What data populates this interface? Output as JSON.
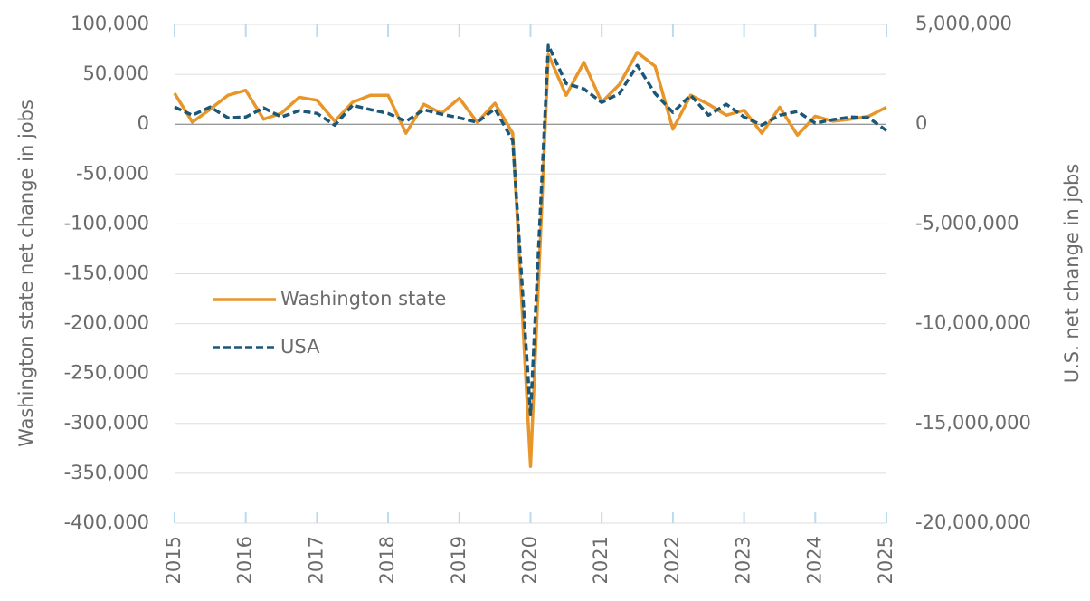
{
  "chart_data": {
    "type": "line",
    "y_label": "Washington state net change in jobs",
    "y2_label": "U.S. net change in jobs",
    "x": [
      2015,
      2015.25,
      2015.5,
      2015.75,
      2016,
      2016.25,
      2016.5,
      2016.75,
      2017,
      2017.25,
      2017.5,
      2017.75,
      2018,
      2018.25,
      2018.5,
      2018.75,
      2019,
      2019.25,
      2019.5,
      2019.75,
      2020,
      2020.25,
      2020.5,
      2020.75,
      2021,
      2021.25,
      2021.5,
      2021.75,
      2022,
      2022.25,
      2022.5,
      2022.75,
      2023,
      2023.25,
      2023.5,
      2023.75,
      2024,
      2024.25,
      2024.5,
      2024.75,
      2025
    ],
    "xlim": [
      2015,
      2025
    ],
    "xticks": [
      2015,
      2016,
      2017,
      2018,
      2019,
      2020,
      2021,
      2022,
      2023,
      2024,
      2025
    ],
    "ylim": [
      -400000,
      100000
    ],
    "yticks": [
      {
        "value": -400000,
        "label": "-400,000"
      },
      {
        "value": -350000,
        "label": "-350,000"
      },
      {
        "value": -300000,
        "label": "-300,000"
      },
      {
        "value": -250000,
        "label": "-250,000"
      },
      {
        "value": -200000,
        "label": "-200,000"
      },
      {
        "value": -150000,
        "label": "-150,000"
      },
      {
        "value": -100000,
        "label": "-100,000"
      },
      {
        "value": -50000,
        "label": "-50,000"
      },
      0,
      {
        "value": 50000,
        "label": "50,000"
      },
      {
        "value": 100000,
        "label": "100,000"
      }
    ],
    "y2lim": [
      -20000000,
      5000000
    ],
    "y2ticks": [
      {
        "value": -20000000,
        "label": "-20,000,000"
      },
      {
        "value": -15000000,
        "label": "-15,000,000"
      },
      {
        "value": -10000000,
        "label": "-10,000,000"
      },
      {
        "value": -5000000,
        "label": "-5,000,000"
      },
      0,
      {
        "value": 5000000,
        "label": "5,000,000"
      }
    ],
    "grid": true,
    "series": [
      {
        "name": "Washington state",
        "color": "#e8962a",
        "dash": false,
        "values": [
          31000,
          2000,
          15000,
          29000,
          34000,
          5000,
          11000,
          27000,
          24000,
          3000,
          22000,
          29000,
          29000,
          -9000,
          20000,
          11000,
          26000,
          2000,
          21000,
          -9000,
          -343000,
          70000,
          29000,
          62000,
          22000,
          40000,
          72000,
          58000,
          -5000,
          29000,
          20000,
          9000,
          14000,
          -9000,
          17000,
          -11000,
          8000,
          3000,
          5000,
          8000,
          17000
        ]
      },
      {
        "name": "USA",
        "color": "#1b5777",
        "dash": true,
        "axis": "y2",
        "values": [
          860000,
          450000,
          860000,
          320000,
          360000,
          820000,
          360000,
          680000,
          540000,
          -50000,
          950000,
          730000,
          540000,
          140000,
          730000,
          500000,
          320000,
          90000,
          770000,
          -820000,
          -14570000,
          3950000,
          2040000,
          1770000,
          1090000,
          1540000,
          2950000,
          1540000,
          590000,
          1450000,
          450000,
          1000000,
          360000,
          -50000,
          450000,
          640000,
          50000,
          230000,
          360000,
          320000,
          -320000
        ]
      }
    ]
  }
}
